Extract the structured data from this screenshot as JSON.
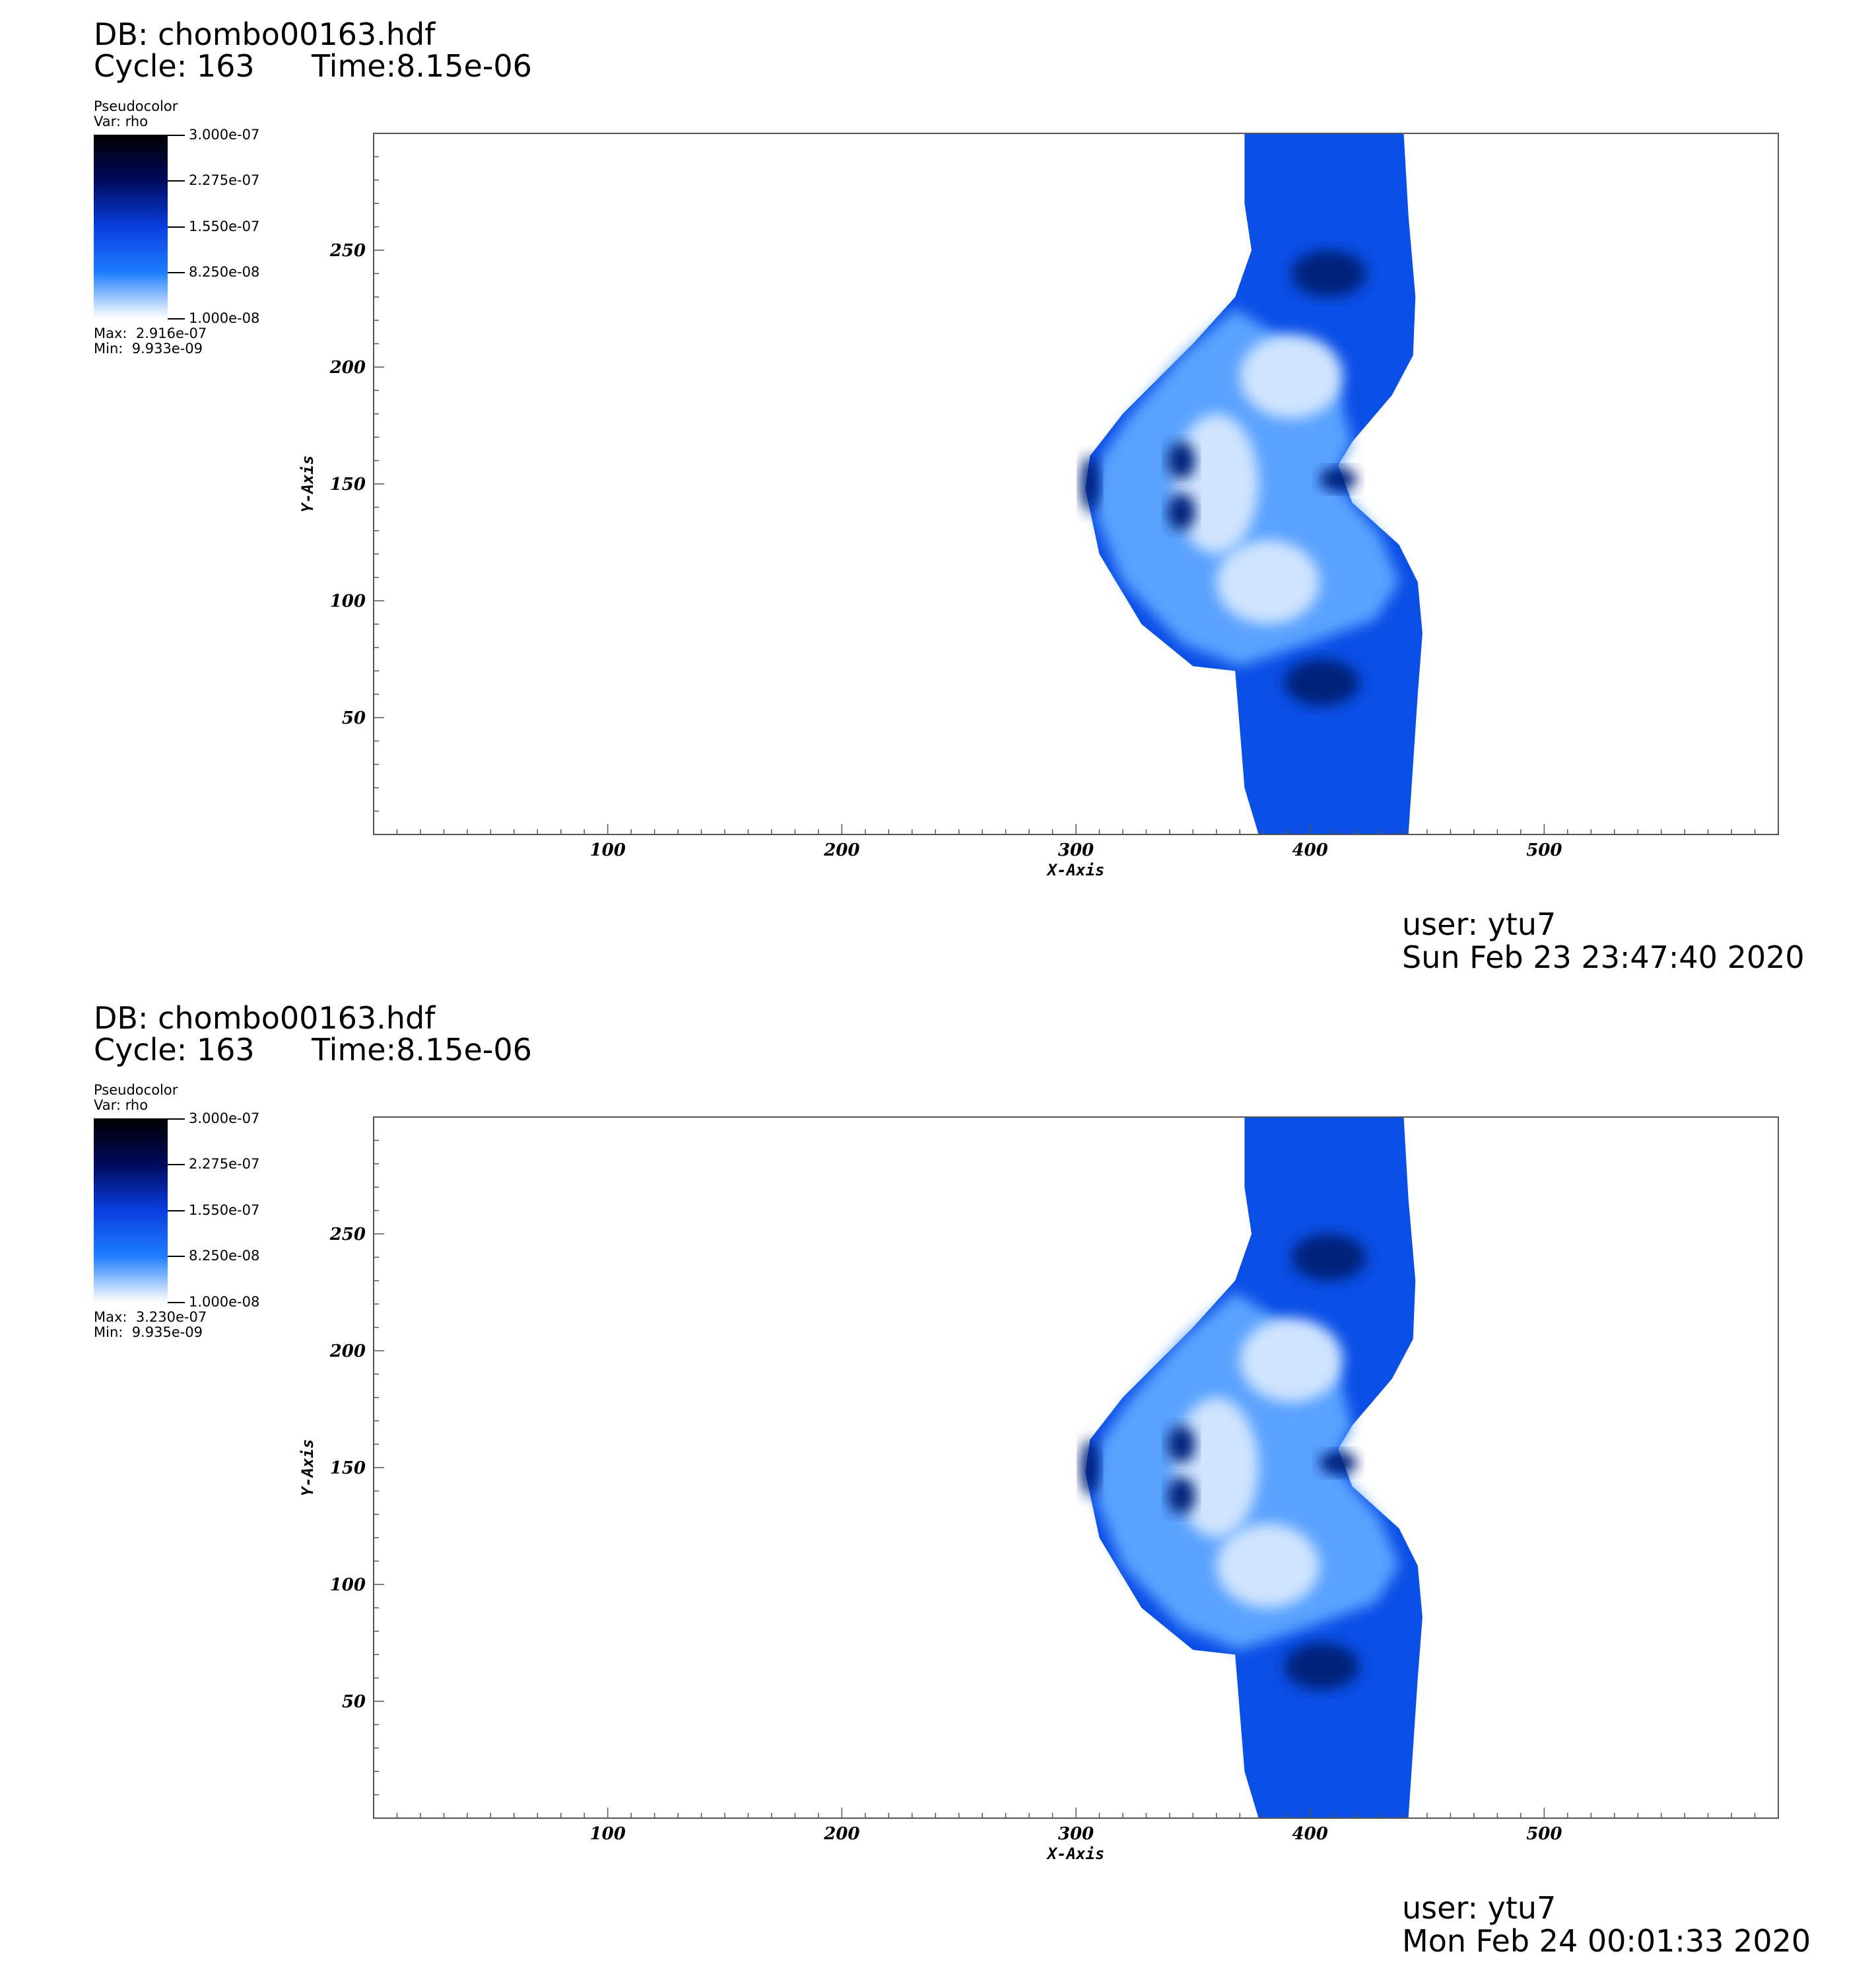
{
  "panels": [
    {
      "db": "DB: chombo00163.hdf",
      "cycle": "Cycle: 163",
      "time": "Time:8.15e-06",
      "legend": {
        "title": "Pseudocolor",
        "var": "Var: rho",
        "ticks": [
          "3.000e-07",
          "2.275e-07",
          "1.550e-07",
          "8.250e-08",
          "1.000e-08"
        ],
        "max": "Max:  2.916e-07",
        "min": "Min:  9.933e-09",
        "colors": [
          "#000000",
          "#000a5c",
          "#0a3ee0",
          "#1e7dff",
          "#ffffff"
        ]
      },
      "user": "user: ytu7",
      "date": "Sun Feb 23 23:47:40 2020"
    },
    {
      "db": "DB: chombo00163.hdf",
      "cycle": "Cycle: 163",
      "time": "Time:8.15e-06",
      "legend": {
        "title": "Pseudocolor",
        "var": "Var: rho",
        "ticks": [
          "3.000e-07",
          "2.275e-07",
          "1.550e-07",
          "8.250e-08",
          "1.000e-08"
        ],
        "max": "Max:  3.230e-07",
        "min": "Min:  9.935e-09",
        "colors": [
          "#000000",
          "#000a5c",
          "#0a3ee0",
          "#1e7dff",
          "#ffffff"
        ]
      },
      "user": "user: ytu7",
      "date": "Mon Feb 24 00:01:33 2020"
    }
  ],
  "chart_data": [
    {
      "type": "heatmap",
      "variable": "rho",
      "xlabel": "X-Axis",
      "ylabel": "Y-Axis",
      "xlim": [
        0,
        600
      ],
      "ylim": [
        0,
        300
      ],
      "xticks": [
        100,
        200,
        300,
        400,
        500
      ],
      "yticks": [
        50,
        100,
        150,
        200,
        250
      ],
      "colorbar_range": [
        1e-08,
        3e-07
      ],
      "max": 2.916e-07,
      "min": 9.933e-09
    },
    {
      "type": "heatmap",
      "variable": "rho",
      "xlabel": "X-Axis",
      "ylabel": "Y-Axis",
      "xlim": [
        0,
        600
      ],
      "ylim": [
        0,
        300
      ],
      "xticks": [
        100,
        200,
        300,
        400,
        500
      ],
      "yticks": [
        50,
        100,
        150,
        200,
        250
      ],
      "colorbar_range": [
        1e-08,
        3e-07
      ],
      "max": 3.23e-07,
      "min": 9.935e-09
    }
  ]
}
